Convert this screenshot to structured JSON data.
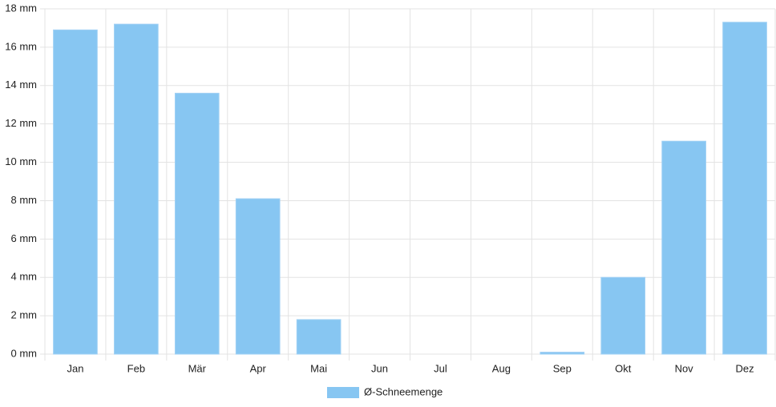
{
  "chart_data": {
    "type": "bar",
    "categories": [
      "Jan",
      "Feb",
      "Mär",
      "Apr",
      "Mai",
      "Jun",
      "Jul",
      "Aug",
      "Sep",
      "Okt",
      "Nov",
      "Dez"
    ],
    "series": [
      {
        "name": "Ø-Schneemenge",
        "color": "#87c6f2",
        "values": [
          16.9,
          17.2,
          13.6,
          8.1,
          1.8,
          0,
          0,
          0,
          0.1,
          4,
          11.1,
          17.3
        ]
      }
    ],
    "ylim": [
      0,
      18
    ],
    "yticks": [
      {
        "value": 0,
        "label": "0 mm"
      },
      {
        "value": 2,
        "label": "2 mm"
      },
      {
        "value": 4,
        "label": "4 mm"
      },
      {
        "value": 6,
        "label": "6 mm"
      },
      {
        "value": 8,
        "label": "8 mm"
      },
      {
        "value": 10,
        "label": "10 mm"
      },
      {
        "value": 12,
        "label": "12 mm"
      },
      {
        "value": 14,
        "label": "14 mm"
      },
      {
        "value": 16,
        "label": "16 mm"
      },
      {
        "value": 18,
        "label": "18 mm"
      }
    ],
    "grid": true,
    "legend": "bottom"
  }
}
